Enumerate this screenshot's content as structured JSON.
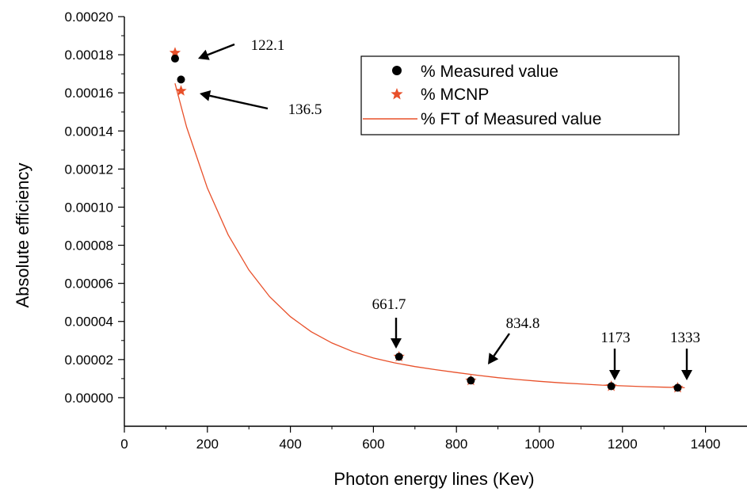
{
  "chart_data": {
    "type": "scatter",
    "title": "",
    "xlabel": "Photon energy lines (Kev)",
    "ylabel": "Absolute efficiency",
    "xlim": [
      0,
      1500
    ],
    "ylim": [
      -1.5e-05,
      0.0002
    ],
    "x_ticks": [
      0,
      200,
      400,
      600,
      800,
      1000,
      1200,
      1400
    ],
    "y_ticks": [
      0.0,
      2e-05,
      4e-05,
      6e-05,
      8e-05,
      0.0001,
      0.00012,
      0.00014,
      0.00016,
      0.00018,
      0.0002
    ],
    "x_tick_labels": [
      "0",
      "200",
      "400",
      "600",
      "800",
      "1000",
      "1200",
      "1400"
    ],
    "y_tick_labels": [
      "0.00000",
      "0.00002",
      "0.00004",
      "0.00006",
      "0.00008",
      "0.00010",
      "0.00012",
      "0.00014",
      "0.00016",
      "0.00018",
      "0.00020"
    ],
    "legend_position": "top-right",
    "series": [
      {
        "name": "% Measured value",
        "marker": "circle",
        "color": "#000000",
        "x": [
          122.1,
          136.5,
          661.7,
          834.8,
          1173,
          1333
        ],
        "y": [
          0.000178,
          0.000167,
          2.15e-05,
          9e-06,
          6e-06,
          5.2e-06
        ]
      },
      {
        "name": "% MCNP",
        "marker": "star",
        "color": "#e8502a",
        "x": [
          122.1,
          136.5,
          661.7,
          834.8,
          1173,
          1333
        ],
        "y": [
          0.000181,
          0.000161,
          2.15e-05,
          9e-06,
          6e-06,
          5.2e-06
        ]
      },
      {
        "name": "% FT of Measured value",
        "marker": "line",
        "color": "#e8502a",
        "x": [
          122,
          150,
          200,
          250,
          300,
          350,
          400,
          450,
          500,
          550,
          600,
          650,
          700,
          750,
          800,
          850,
          900,
          950,
          1000,
          1050,
          1100,
          1150,
          1200,
          1250,
          1300,
          1350
        ],
        "y": [
          0.000165,
          0.000142,
          0.00011,
          8.55e-05,
          6.7e-05,
          5.3e-05,
          4.25e-05,
          3.46e-05,
          2.87e-05,
          2.42e-05,
          2.08e-05,
          1.83e-05,
          1.63e-05,
          1.47e-05,
          1.32e-05,
          1.18e-05,
          1.05e-05,
          9.5e-06,
          8.6e-06,
          7.8e-06,
          7.2e-06,
          6.6e-06,
          6.2e-06,
          5.8e-06,
          5.5e-06,
          5.2e-06
        ]
      }
    ],
    "annotations": [
      {
        "text": "122.1",
        "x": 122.1
      },
      {
        "text": "136.5",
        "x": 136.5
      },
      {
        "text": "661.7",
        "x": 661.7
      },
      {
        "text": "834.8",
        "x": 834.8
      },
      {
        "text": "1173",
        "x": 1173
      },
      {
        "text": "1333",
        "x": 1333
      }
    ],
    "colors": {
      "axis": "#000000",
      "fit": "#e8502a",
      "mcnp": "#e8502a",
      "measured": "#000000"
    }
  }
}
